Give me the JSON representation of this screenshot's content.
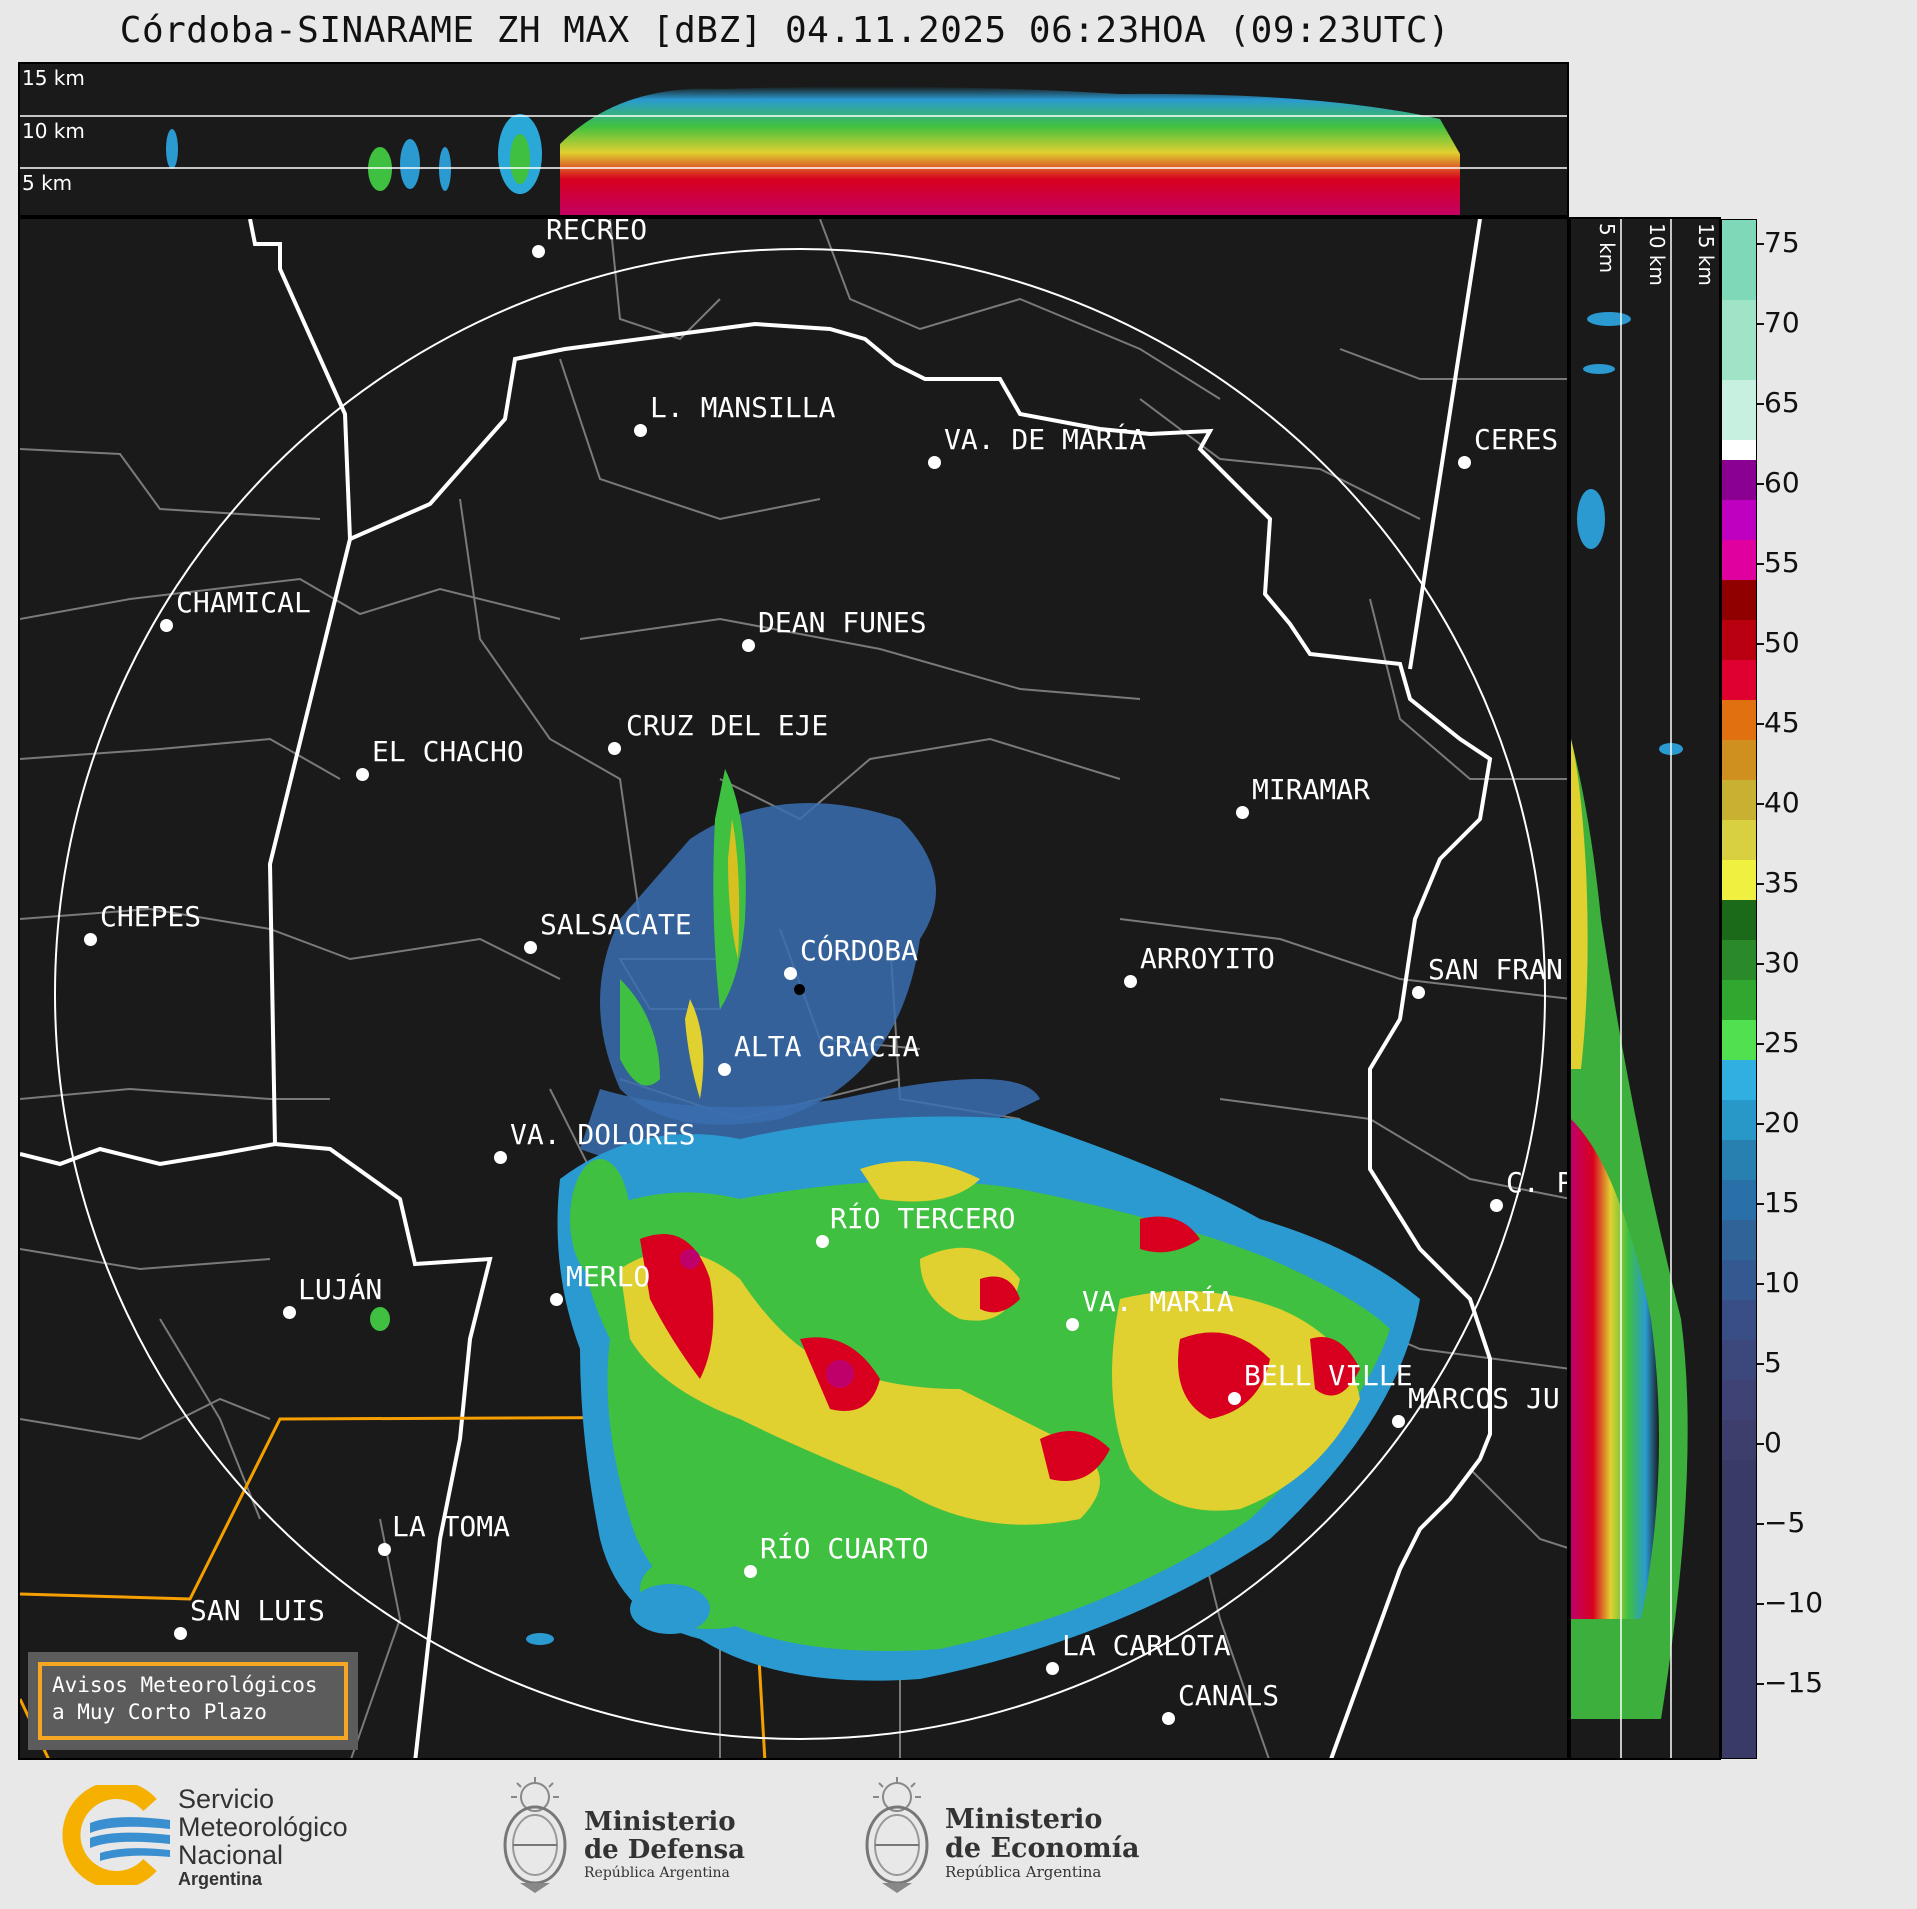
{
  "title": "Córdoba-SINARAME ZH MAX [dBZ] 04.11.2025 06:23HOA (09:23UTC)",
  "top_section": {
    "height_labels": [
      "15 km",
      "10 km",
      "5 km"
    ]
  },
  "right_section": {
    "height_labels": [
      "5 km",
      "10 km",
      "15 km"
    ]
  },
  "colorbar": {
    "unit": "dBZ",
    "ticks": [
      "75",
      "70",
      "65",
      "60",
      "55",
      "50",
      "45",
      "40",
      "35",
      "30",
      "25",
      "20",
      "15",
      "10",
      "5",
      "0",
      "−5",
      "−10",
      "−15"
    ],
    "range": [
      -20,
      77
    ]
  },
  "cities": [
    {
      "name": "RECREO"
    },
    {
      "name": "L. MANSILLA"
    },
    {
      "name": "VA. DE MARÍA"
    },
    {
      "name": "CERES"
    },
    {
      "name": "CHAMICAL"
    },
    {
      "name": "DEAN FUNES"
    },
    {
      "name": "CRUZ DEL EJE"
    },
    {
      "name": "EL CHACHO"
    },
    {
      "name": "MIRAMAR"
    },
    {
      "name": "CHEPES"
    },
    {
      "name": "SALSACATE"
    },
    {
      "name": "CÓRDOBA"
    },
    {
      "name": "ARROYITO"
    },
    {
      "name": "SAN FRAN"
    },
    {
      "name": "ALTA GRACIA"
    },
    {
      "name": "VA. DOLORES"
    },
    {
      "name": "C. P"
    },
    {
      "name": "RÍO TERCERO"
    },
    {
      "name": "MERLO"
    },
    {
      "name": "LUJÁN"
    },
    {
      "name": "VA. MARÍA"
    },
    {
      "name": "BELL VILLE"
    },
    {
      "name": "MARCOS JU"
    },
    {
      "name": "LA TOMA"
    },
    {
      "name": "RÍO CUARTO"
    },
    {
      "name": "SAN LUIS"
    },
    {
      "name": "LA CARLOTA"
    },
    {
      "name": "CANALS"
    }
  ],
  "aviso": {
    "line1": "Avisos Meteorológicos",
    "line2": "a Muy Corto Plazo"
  },
  "logos": {
    "smn": [
      "Servicio",
      "Meteorológico",
      "Nacional",
      "Argentina"
    ],
    "defensa": [
      "Ministerio",
      "de Defensa",
      "República Argentina"
    ],
    "economia": [
      "Ministerio",
      "de Economía",
      "República Argentina"
    ]
  },
  "colors": {
    "background": "#1a1a1a",
    "border_province": "#ffffff",
    "border_dept": "#7a7a7a",
    "border_sanluis": "#f5a000"
  }
}
